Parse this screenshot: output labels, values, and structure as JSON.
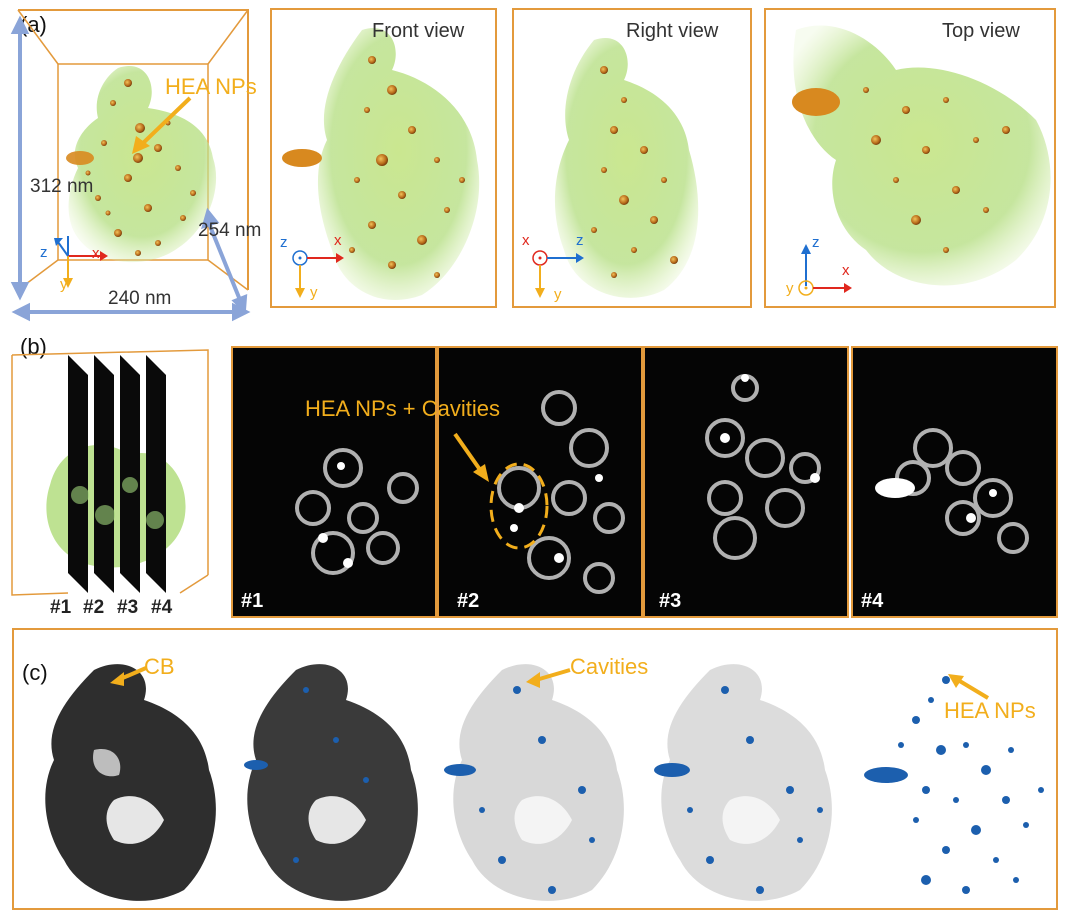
{
  "panel_a": {
    "label": "(a)",
    "annotation": "HEA NPs",
    "dims": {
      "height": "312 nm",
      "depth": "254 nm",
      "width": "240 nm"
    },
    "views": [
      {
        "title": "Front view",
        "axes": [
          "z",
          "x",
          "y"
        ]
      },
      {
        "title": "Right view",
        "axes": [
          "x",
          "z",
          "y"
        ]
      },
      {
        "title": "Top view",
        "axes": [
          "z",
          "y",
          "x"
        ]
      }
    ],
    "main_axes": [
      "z",
      "x",
      "y"
    ]
  },
  "panel_b": {
    "label": "(b)",
    "annotation": "HEA NPs + Cavities",
    "slices": [
      "#1",
      "#2",
      "#3",
      "#4"
    ]
  },
  "panel_c": {
    "label": "(c)",
    "annotations": {
      "cb": "CB",
      "cavities": "Cavities",
      "nps": "HEA NPs"
    }
  },
  "colors": {
    "frame": "#e39a3c",
    "label_orange": "#f2ae1c",
    "axis_red": "#e0281e",
    "axis_blue": "#1f6fd0",
    "np_blue": "#1c5fae",
    "carbon_dark": "#2e2e2e"
  }
}
